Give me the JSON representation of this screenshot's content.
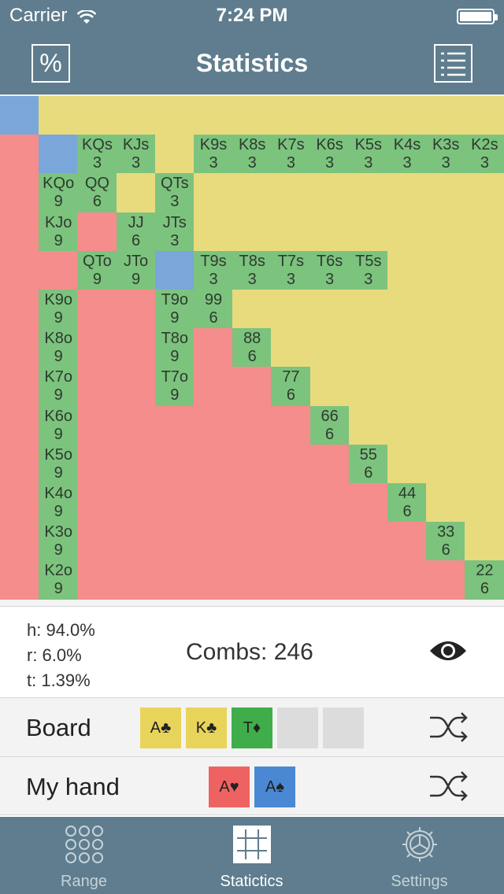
{
  "status_bar": {
    "carrier": "Carrier",
    "time": "7:24 PM"
  },
  "nav": {
    "title": "Statistics",
    "left_button_label": "%"
  },
  "colors": {
    "suited": "#e8db7e",
    "offsuit": "#f48d8b",
    "in_range": "#7cc37e",
    "board_blocked": "#7aa6da",
    "header": "#5f7d8e"
  },
  "grid": {
    "cols": 13,
    "rows": 13,
    "cells": [
      {
        "r": 0,
        "c": 0,
        "s": "b"
      },
      {
        "r": 0,
        "c": 1,
        "s": "s"
      },
      {
        "r": 0,
        "c": 2,
        "s": "s"
      },
      {
        "r": 0,
        "c": 3,
        "s": "s"
      },
      {
        "r": 0,
        "c": 4,
        "s": "s"
      },
      {
        "r": 0,
        "c": 5,
        "s": "s"
      },
      {
        "r": 0,
        "c": 6,
        "s": "s"
      },
      {
        "r": 0,
        "c": 7,
        "s": "s"
      },
      {
        "r": 0,
        "c": 8,
        "s": "s"
      },
      {
        "r": 0,
        "c": 9,
        "s": "s"
      },
      {
        "r": 0,
        "c": 10,
        "s": "s"
      },
      {
        "r": 0,
        "c": 11,
        "s": "s"
      },
      {
        "r": 0,
        "c": 12,
        "s": "s"
      },
      {
        "r": 1,
        "c": 0,
        "s": "o"
      },
      {
        "r": 1,
        "c": 1,
        "s": "b"
      },
      {
        "r": 1,
        "c": 2,
        "s": "p",
        "h": "KQs",
        "n": "3"
      },
      {
        "r": 1,
        "c": 3,
        "s": "p",
        "h": "KJs",
        "n": "3"
      },
      {
        "r": 1,
        "c": 4,
        "s": "s"
      },
      {
        "r": 1,
        "c": 5,
        "s": "p",
        "h": "K9s",
        "n": "3"
      },
      {
        "r": 1,
        "c": 6,
        "s": "p",
        "h": "K8s",
        "n": "3"
      },
      {
        "r": 1,
        "c": 7,
        "s": "p",
        "h": "K7s",
        "n": "3"
      },
      {
        "r": 1,
        "c": 8,
        "s": "p",
        "h": "K6s",
        "n": "3"
      },
      {
        "r": 1,
        "c": 9,
        "s": "p",
        "h": "K5s",
        "n": "3"
      },
      {
        "r": 1,
        "c": 10,
        "s": "p",
        "h": "K4s",
        "n": "3"
      },
      {
        "r": 1,
        "c": 11,
        "s": "p",
        "h": "K3s",
        "n": "3"
      },
      {
        "r": 1,
        "c": 12,
        "s": "p",
        "h": "K2s",
        "n": "3"
      },
      {
        "r": 2,
        "c": 0,
        "s": "o"
      },
      {
        "r": 2,
        "c": 1,
        "s": "p",
        "h": "KQo",
        "n": "9"
      },
      {
        "r": 2,
        "c": 2,
        "s": "p",
        "h": "QQ",
        "n": "6"
      },
      {
        "r": 2,
        "c": 3,
        "s": "s"
      },
      {
        "r": 2,
        "c": 4,
        "s": "p",
        "h": "QTs",
        "n": "3"
      },
      {
        "r": 2,
        "c": 5,
        "s": "s"
      },
      {
        "r": 2,
        "c": 6,
        "s": "s"
      },
      {
        "r": 2,
        "c": 7,
        "s": "s"
      },
      {
        "r": 2,
        "c": 8,
        "s": "s"
      },
      {
        "r": 2,
        "c": 9,
        "s": "s"
      },
      {
        "r": 2,
        "c": 10,
        "s": "s"
      },
      {
        "r": 2,
        "c": 11,
        "s": "s"
      },
      {
        "r": 2,
        "c": 12,
        "s": "s"
      },
      {
        "r": 3,
        "c": 0,
        "s": "o"
      },
      {
        "r": 3,
        "c": 1,
        "s": "p",
        "h": "KJo",
        "n": "9"
      },
      {
        "r": 3,
        "c": 2,
        "s": "o"
      },
      {
        "r": 3,
        "c": 3,
        "s": "p",
        "h": "JJ",
        "n": "6"
      },
      {
        "r": 3,
        "c": 4,
        "s": "p",
        "h": "JTs",
        "n": "3"
      },
      {
        "r": 3,
        "c": 5,
        "s": "s"
      },
      {
        "r": 3,
        "c": 6,
        "s": "s"
      },
      {
        "r": 3,
        "c": 7,
        "s": "s"
      },
      {
        "r": 3,
        "c": 8,
        "s": "s"
      },
      {
        "r": 3,
        "c": 9,
        "s": "s"
      },
      {
        "r": 3,
        "c": 10,
        "s": "s"
      },
      {
        "r": 3,
        "c": 11,
        "s": "s"
      },
      {
        "r": 3,
        "c": 12,
        "s": "s"
      },
      {
        "r": 4,
        "c": 0,
        "s": "o"
      },
      {
        "r": 4,
        "c": 1,
        "s": "o"
      },
      {
        "r": 4,
        "c": 2,
        "s": "p",
        "h": "QTo",
        "n": "9"
      },
      {
        "r": 4,
        "c": 3,
        "s": "p",
        "h": "JTo",
        "n": "9"
      },
      {
        "r": 4,
        "c": 4,
        "s": "b"
      },
      {
        "r": 4,
        "c": 5,
        "s": "p",
        "h": "T9s",
        "n": "3"
      },
      {
        "r": 4,
        "c": 6,
        "s": "p",
        "h": "T8s",
        "n": "3"
      },
      {
        "r": 4,
        "c": 7,
        "s": "p",
        "h": "T7s",
        "n": "3"
      },
      {
        "r": 4,
        "c": 8,
        "s": "p",
        "h": "T6s",
        "n": "3"
      },
      {
        "r": 4,
        "c": 9,
        "s": "p",
        "h": "T5s",
        "n": "3"
      },
      {
        "r": 4,
        "c": 10,
        "s": "s"
      },
      {
        "r": 4,
        "c": 11,
        "s": "s"
      },
      {
        "r": 4,
        "c": 12,
        "s": "s"
      },
      {
        "r": 5,
        "c": 0,
        "s": "o"
      },
      {
        "r": 5,
        "c": 1,
        "s": "p",
        "h": "K9o",
        "n": "9"
      },
      {
        "r": 5,
        "c": 2,
        "s": "o"
      },
      {
        "r": 5,
        "c": 3,
        "s": "o"
      },
      {
        "r": 5,
        "c": 4,
        "s": "p",
        "h": "T9o",
        "n": "9"
      },
      {
        "r": 5,
        "c": 5,
        "s": "p",
        "h": "99",
        "n": "6"
      },
      {
        "r": 5,
        "c": 6,
        "s": "s"
      },
      {
        "r": 5,
        "c": 7,
        "s": "s"
      },
      {
        "r": 5,
        "c": 8,
        "s": "s"
      },
      {
        "r": 5,
        "c": 9,
        "s": "s"
      },
      {
        "r": 5,
        "c": 10,
        "s": "s"
      },
      {
        "r": 5,
        "c": 11,
        "s": "s"
      },
      {
        "r": 5,
        "c": 12,
        "s": "s"
      },
      {
        "r": 6,
        "c": 0,
        "s": "o"
      },
      {
        "r": 6,
        "c": 1,
        "s": "p",
        "h": "K8o",
        "n": "9"
      },
      {
        "r": 6,
        "c": 2,
        "s": "o"
      },
      {
        "r": 6,
        "c": 3,
        "s": "o"
      },
      {
        "r": 6,
        "c": 4,
        "s": "p",
        "h": "T8o",
        "n": "9"
      },
      {
        "r": 6,
        "c": 5,
        "s": "o"
      },
      {
        "r": 6,
        "c": 6,
        "s": "p",
        "h": "88",
        "n": "6"
      },
      {
        "r": 6,
        "c": 7,
        "s": "s"
      },
      {
        "r": 6,
        "c": 8,
        "s": "s"
      },
      {
        "r": 6,
        "c": 9,
        "s": "s"
      },
      {
        "r": 6,
        "c": 10,
        "s": "s"
      },
      {
        "r": 6,
        "c": 11,
        "s": "s"
      },
      {
        "r": 6,
        "c": 12,
        "s": "s"
      },
      {
        "r": 7,
        "c": 0,
        "s": "o"
      },
      {
        "r": 7,
        "c": 1,
        "s": "p",
        "h": "K7o",
        "n": "9"
      },
      {
        "r": 7,
        "c": 2,
        "s": "o"
      },
      {
        "r": 7,
        "c": 3,
        "s": "o"
      },
      {
        "r": 7,
        "c": 4,
        "s": "p",
        "h": "T7o",
        "n": "9"
      },
      {
        "r": 7,
        "c": 5,
        "s": "o"
      },
      {
        "r": 7,
        "c": 6,
        "s": "o"
      },
      {
        "r": 7,
        "c": 7,
        "s": "p",
        "h": "77",
        "n": "6"
      },
      {
        "r": 7,
        "c": 8,
        "s": "s"
      },
      {
        "r": 7,
        "c": 9,
        "s": "s"
      },
      {
        "r": 7,
        "c": 10,
        "s": "s"
      },
      {
        "r": 7,
        "c": 11,
        "s": "s"
      },
      {
        "r": 7,
        "c": 12,
        "s": "s"
      },
      {
        "r": 8,
        "c": 0,
        "s": "o"
      },
      {
        "r": 8,
        "c": 1,
        "s": "p",
        "h": "K6o",
        "n": "9"
      },
      {
        "r": 8,
        "c": 2,
        "s": "o"
      },
      {
        "r": 8,
        "c": 3,
        "s": "o"
      },
      {
        "r": 8,
        "c": 4,
        "s": "o"
      },
      {
        "r": 8,
        "c": 5,
        "s": "o"
      },
      {
        "r": 8,
        "c": 6,
        "s": "o"
      },
      {
        "r": 8,
        "c": 7,
        "s": "o"
      },
      {
        "r": 8,
        "c": 8,
        "s": "p",
        "h": "66",
        "n": "6"
      },
      {
        "r": 8,
        "c": 9,
        "s": "s"
      },
      {
        "r": 8,
        "c": 10,
        "s": "s"
      },
      {
        "r": 8,
        "c": 11,
        "s": "s"
      },
      {
        "r": 8,
        "c": 12,
        "s": "s"
      },
      {
        "r": 9,
        "c": 0,
        "s": "o"
      },
      {
        "r": 9,
        "c": 1,
        "s": "p",
        "h": "K5o",
        "n": "9"
      },
      {
        "r": 9,
        "c": 2,
        "s": "o"
      },
      {
        "r": 9,
        "c": 3,
        "s": "o"
      },
      {
        "r": 9,
        "c": 4,
        "s": "o"
      },
      {
        "r": 9,
        "c": 5,
        "s": "o"
      },
      {
        "r": 9,
        "c": 6,
        "s": "o"
      },
      {
        "r": 9,
        "c": 7,
        "s": "o"
      },
      {
        "r": 9,
        "c": 8,
        "s": "o"
      },
      {
        "r": 9,
        "c": 9,
        "s": "p",
        "h": "55",
        "n": "6"
      },
      {
        "r": 9,
        "c": 10,
        "s": "s"
      },
      {
        "r": 9,
        "c": 11,
        "s": "s"
      },
      {
        "r": 9,
        "c": 12,
        "s": "s"
      },
      {
        "r": 10,
        "c": 0,
        "s": "o"
      },
      {
        "r": 10,
        "c": 1,
        "s": "p",
        "h": "K4o",
        "n": "9"
      },
      {
        "r": 10,
        "c": 2,
        "s": "o"
      },
      {
        "r": 10,
        "c": 3,
        "s": "o"
      },
      {
        "r": 10,
        "c": 4,
        "s": "o"
      },
      {
        "r": 10,
        "c": 5,
        "s": "o"
      },
      {
        "r": 10,
        "c": 6,
        "s": "o"
      },
      {
        "r": 10,
        "c": 7,
        "s": "o"
      },
      {
        "r": 10,
        "c": 8,
        "s": "o"
      },
      {
        "r": 10,
        "c": 9,
        "s": "o"
      },
      {
        "r": 10,
        "c": 10,
        "s": "p",
        "h": "44",
        "n": "6"
      },
      {
        "r": 10,
        "c": 11,
        "s": "s"
      },
      {
        "r": 10,
        "c": 12,
        "s": "s"
      },
      {
        "r": 11,
        "c": 0,
        "s": "o"
      },
      {
        "r": 11,
        "c": 1,
        "s": "p",
        "h": "K3o",
        "n": "9"
      },
      {
        "r": 11,
        "c": 2,
        "s": "o"
      },
      {
        "r": 11,
        "c": 3,
        "s": "o"
      },
      {
        "r": 11,
        "c": 4,
        "s": "o"
      },
      {
        "r": 11,
        "c": 5,
        "s": "o"
      },
      {
        "r": 11,
        "c": 6,
        "s": "o"
      },
      {
        "r": 11,
        "c": 7,
        "s": "o"
      },
      {
        "r": 11,
        "c": 8,
        "s": "o"
      },
      {
        "r": 11,
        "c": 9,
        "s": "o"
      },
      {
        "r": 11,
        "c": 10,
        "s": "o"
      },
      {
        "r": 11,
        "c": 11,
        "s": "p",
        "h": "33",
        "n": "6"
      },
      {
        "r": 11,
        "c": 12,
        "s": "s"
      },
      {
        "r": 12,
        "c": 0,
        "s": "o"
      },
      {
        "r": 12,
        "c": 1,
        "s": "p",
        "h": "K2o",
        "n": "9"
      },
      {
        "r": 12,
        "c": 2,
        "s": "o"
      },
      {
        "r": 12,
        "c": 3,
        "s": "o"
      },
      {
        "r": 12,
        "c": 4,
        "s": "o"
      },
      {
        "r": 12,
        "c": 5,
        "s": "o"
      },
      {
        "r": 12,
        "c": 6,
        "s": "o"
      },
      {
        "r": 12,
        "c": 7,
        "s": "o"
      },
      {
        "r": 12,
        "c": 8,
        "s": "o"
      },
      {
        "r": 12,
        "c": 9,
        "s": "o"
      },
      {
        "r": 12,
        "c": 10,
        "s": "o"
      },
      {
        "r": 12,
        "c": 11,
        "s": "o"
      },
      {
        "r": 12,
        "c": 12,
        "s": "p",
        "h": "22",
        "n": "6"
      }
    ]
  },
  "stats": {
    "h": "h: 94.0%",
    "r": "r: 6.0%",
    "t": "t: 1.39%",
    "combs": "Combs: 246"
  },
  "board": {
    "label": "Board",
    "cards": [
      {
        "text": "A♣",
        "color": "#e8d45a"
      },
      {
        "text": "K♣",
        "color": "#e8d45a"
      },
      {
        "text": "T♦",
        "color": "#3fae4a"
      },
      {
        "text": "",
        "color": "#dcdcdc"
      },
      {
        "text": "",
        "color": "#dcdcdc"
      }
    ]
  },
  "hand": {
    "label": "My hand",
    "cards": [
      {
        "text": "A♥",
        "color": "#ef6262"
      },
      {
        "text": "A♠",
        "color": "#4a88d3"
      }
    ]
  },
  "tabs": [
    {
      "label": "Range",
      "icon": "circles-icon",
      "active": false
    },
    {
      "label": "Statictics",
      "icon": "grid-icon",
      "active": true
    },
    {
      "label": "Settings",
      "icon": "gear-icon",
      "active": false
    }
  ]
}
